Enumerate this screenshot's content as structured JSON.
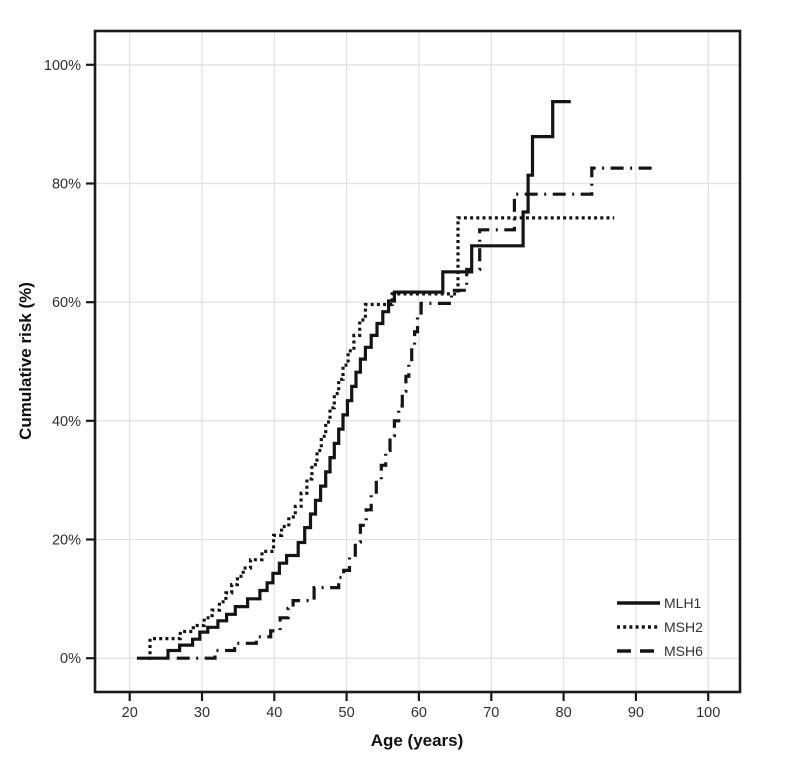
{
  "figure": {
    "background": "#ffffff",
    "plot_background": "#ffffff",
    "axis_color": "#1a1a1a",
    "grid_color": "#e3e3e3",
    "tick_label_color": "#2e2e2e",
    "series_color": "#141414"
  },
  "chart_data": {
    "type": "line",
    "subtype": "kaplan-meier-step-curves",
    "title": "",
    "xlabel": "Age (years)",
    "ylabel": "Cumulative risk (%)",
    "xlim": [
      15.2,
      104.4
    ],
    "ylim": [
      -5.7,
      105.7
    ],
    "grid": true,
    "x_ticks": [
      20,
      30,
      40,
      50,
      60,
      70,
      80,
      90,
      100
    ],
    "x_tick_labels": [
      "20",
      "30",
      "40",
      "50",
      "60",
      "70",
      "80",
      "90",
      "100"
    ],
    "y_ticks": [
      0,
      20,
      40,
      60,
      80,
      100
    ],
    "y_tick_labels": [
      "0%",
      "20%",
      "40%",
      "60%",
      "80%",
      "100%"
    ],
    "legend_position": "bottom-right",
    "legend": {
      "entries": [
        {
          "label": "MLH1",
          "style": "solid"
        },
        {
          "label": "MSH2",
          "style": "dotted"
        },
        {
          "label": "MSH6",
          "style": "dash-dot"
        }
      ]
    },
    "series": [
      {
        "name": "MLH1",
        "line_style": "solid",
        "points": [
          [
            21,
            0
          ],
          [
            25.3,
            1.3
          ],
          [
            26.9,
            2.2
          ],
          [
            28.7,
            3.2
          ],
          [
            29.7,
            4.4
          ],
          [
            30.8,
            5.2
          ],
          [
            32.2,
            6.3
          ],
          [
            33.4,
            7.4
          ],
          [
            34.6,
            8.7
          ],
          [
            36.3,
            10
          ],
          [
            38,
            11.4
          ],
          [
            39,
            12.7
          ],
          [
            39.8,
            14.3
          ],
          [
            40.7,
            16
          ],
          [
            41.7,
            17.3
          ],
          [
            43.3,
            19.5
          ],
          [
            44.2,
            22
          ],
          [
            45,
            24.3
          ],
          [
            45.7,
            26.6
          ],
          [
            46.4,
            29
          ],
          [
            47.1,
            31.4
          ],
          [
            47.7,
            33.8
          ],
          [
            48.3,
            36.2
          ],
          [
            48.9,
            38.6
          ],
          [
            49.5,
            41
          ],
          [
            50.1,
            43.4
          ],
          [
            50.7,
            45.8
          ],
          [
            51.3,
            48.2
          ],
          [
            51.9,
            50.4
          ],
          [
            52.6,
            52.4
          ],
          [
            53.4,
            54.4
          ],
          [
            54.2,
            56.4
          ],
          [
            55,
            58.4
          ],
          [
            55.8,
            60.2
          ],
          [
            56.6,
            61.7
          ],
          [
            63.3,
            65.1
          ],
          [
            67.3,
            69.5
          ],
          [
            74.4,
            75.2
          ],
          [
            75.1,
            81.4
          ],
          [
            75.7,
            87.9
          ],
          [
            78.5,
            93.8
          ],
          [
            81,
            93.8
          ]
        ]
      },
      {
        "name": "MSH2",
        "line_style": "dotted",
        "points": [
          [
            22.5,
            0
          ],
          [
            22.8,
            3.3
          ],
          [
            27,
            4.5
          ],
          [
            28.8,
            5.5
          ],
          [
            30.3,
            6.8
          ],
          [
            31.4,
            8.1
          ],
          [
            32.4,
            9.5
          ],
          [
            33.3,
            11
          ],
          [
            34.1,
            12.4
          ],
          [
            34.9,
            13.8
          ],
          [
            35.7,
            15.2
          ],
          [
            36.7,
            16.6
          ],
          [
            38.3,
            18
          ],
          [
            39.9,
            20.7
          ],
          [
            41,
            22.2
          ],
          [
            42,
            23.8
          ],
          [
            42.9,
            25.6
          ],
          [
            43.7,
            27.8
          ],
          [
            44.5,
            30.2
          ],
          [
            45.2,
            32.6
          ],
          [
            45.9,
            35
          ],
          [
            46.5,
            37.4
          ],
          [
            47.1,
            39.8
          ],
          [
            47.7,
            42.2
          ],
          [
            48.3,
            44.6
          ],
          [
            48.9,
            47
          ],
          [
            49.5,
            49.4
          ],
          [
            50.2,
            51.8
          ],
          [
            51,
            54.4
          ],
          [
            51.8,
            57
          ],
          [
            52.6,
            59.6
          ],
          [
            56.3,
            61.4
          ],
          [
            65.4,
            74.2
          ],
          [
            87,
            74.2
          ]
        ]
      },
      {
        "name": "MSH6",
        "line_style": "dash-dot",
        "points": [
          [
            26.5,
            0
          ],
          [
            31.8,
            1.3
          ],
          [
            34.5,
            2.5
          ],
          [
            37.5,
            3.6
          ],
          [
            39.5,
            4.6
          ],
          [
            40.8,
            6.8
          ],
          [
            41.9,
            8.4
          ],
          [
            42.6,
            9.7
          ],
          [
            45.5,
            11.9
          ],
          [
            48.9,
            13.6
          ],
          [
            49.6,
            14.8
          ],
          [
            50.4,
            17
          ],
          [
            51.2,
            19.6
          ],
          [
            51.9,
            22.4
          ],
          [
            52.7,
            25
          ],
          [
            53.4,
            27.5
          ],
          [
            54.1,
            30
          ],
          [
            54.8,
            32.5
          ],
          [
            55.4,
            35
          ],
          [
            56,
            37.5
          ],
          [
            56.6,
            40
          ],
          [
            57.2,
            42.5
          ],
          [
            57.7,
            45
          ],
          [
            58.2,
            47.5
          ],
          [
            58.6,
            50
          ],
          [
            59,
            52.5
          ],
          [
            59.4,
            55
          ],
          [
            59.8,
            57.5
          ],
          [
            60.3,
            59.8
          ],
          [
            64.5,
            62
          ],
          [
            66.6,
            65.5
          ],
          [
            68.4,
            72.2
          ],
          [
            73.2,
            78.2
          ],
          [
            83.9,
            82.6
          ],
          [
            92.3,
            82.6
          ]
        ]
      }
    ]
  }
}
